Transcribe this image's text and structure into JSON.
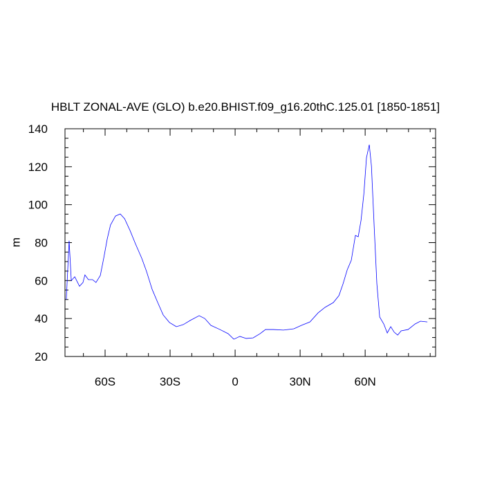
{
  "chart_data": {
    "type": "line",
    "title": "HBLT ZONAL-AVE (GLO) b.e20.BHIST.f09_g16.20thC.125.01 [1850-1851]",
    "y_label": "m",
    "xlim": [
      -78.5,
      92.5
    ],
    "ylim": [
      20,
      140
    ],
    "xticks": [
      {
        "value": -60,
        "label": "60S"
      },
      {
        "value": -30,
        "label": "30S"
      },
      0,
      {
        "value": 30,
        "label": "30N"
      },
      {
        "value": 60,
        "label": "60N"
      }
    ],
    "yticks": [
      20,
      40,
      60,
      80,
      100,
      120,
      140
    ],
    "xminor_ticks": [
      -70,
      -50,
      -40,
      -20,
      -10,
      10,
      20,
      40,
      50,
      70,
      80,
      90
    ],
    "yminor_ticks": [
      25,
      30,
      35,
      45,
      50,
      55,
      65,
      70,
      75,
      85,
      90,
      95,
      105,
      110,
      115,
      125,
      130,
      135
    ],
    "x": [
      -77.9,
      -76.6,
      -75.6,
      -74,
      -71.8,
      -70.2,
      -69.3,
      -67.7,
      -65.8,
      -64.2,
      -62.2,
      -60.6,
      -59,
      -57.5,
      -55.2,
      -53,
      -51,
      -48.5,
      -46,
      -43.1,
      -40.9,
      -38.3,
      -35.7,
      -33.2,
      -30.3,
      -27.1,
      -23.9,
      -20.7,
      -16.6,
      -14,
      -11.2,
      -7,
      -3.2,
      -0.6,
      2.2,
      5.1,
      8.3,
      11.5,
      14,
      17.6,
      22.3,
      27.1,
      30.6,
      34.5,
      38.3,
      41.5,
      45.3,
      47.9,
      49.8,
      51.7,
      53.6,
      55.5,
      56.8,
      58.1,
      59.4,
      60.6,
      61.9,
      62.9,
      64.2,
      65.4,
      66.7,
      68.6,
      70.2,
      71.8,
      73.4,
      75,
      76.6,
      79.8,
      83,
      85.5,
      88.7
    ],
    "series": [
      {
        "color": "#0000ff",
        "values": [
          50,
          81,
          60,
          62,
          57,
          59,
          63,
          60.5,
          60.5,
          59,
          62.7,
          72,
          82,
          89.3,
          94,
          95.1,
          92.6,
          86.4,
          79.4,
          71.8,
          64.9,
          55.4,
          48.4,
          41.9,
          37.9,
          35.7,
          36.8,
          39,
          41.5,
          40,
          36.4,
          34.2,
          32,
          29.1,
          30.6,
          29.5,
          29.8,
          32,
          34.2,
          34.2,
          33.9,
          34.6,
          36.4,
          38.2,
          43,
          45.9,
          48.4,
          52.1,
          58.3,
          65.6,
          70.7,
          83.8,
          83.1,
          91.8,
          105.7,
          124.7,
          131.6,
          120.3,
          87.5,
          58.3,
          40.8,
          37.1,
          32.4,
          35.7,
          32.8,
          31.3,
          33.5,
          34.2,
          37.1,
          38.6,
          38.2
        ]
      }
    ]
  }
}
